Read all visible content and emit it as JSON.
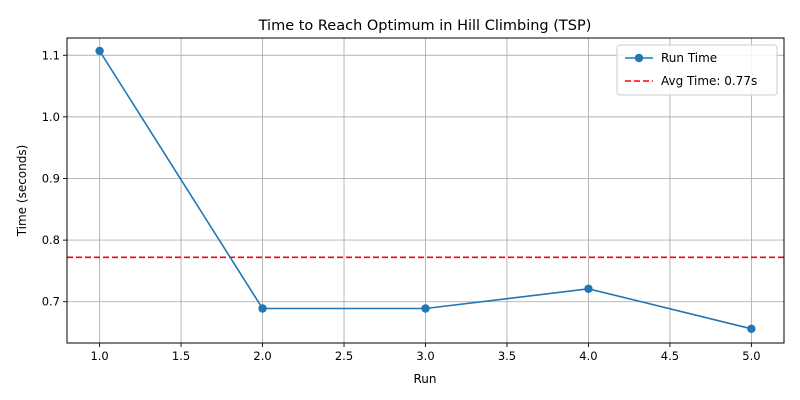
{
  "chart_data": {
    "type": "line",
    "title": "Time to Reach Optimum in Hill Climbing (TSP)",
    "xlabel": "Run",
    "ylabel": "Time (seconds)",
    "xlim": [
      0.8,
      5.2
    ],
    "ylim": [
      0.633,
      1.128
    ],
    "x_ticks": [
      1.0,
      1.5,
      2.0,
      2.5,
      3.0,
      3.5,
      4.0,
      4.5,
      5.0
    ],
    "x_tick_labels": [
      "1.0",
      "1.5",
      "2.0",
      "2.5",
      "3.0",
      "3.5",
      "4.0",
      "4.5",
      "5.0"
    ],
    "y_ticks": [
      0.7,
      0.8,
      0.9,
      1.0,
      1.1
    ],
    "y_tick_labels": [
      "0.7",
      "0.8",
      "0.9",
      "1.0",
      "1.1"
    ],
    "grid": true,
    "legend_position": "top-right",
    "series": [
      {
        "name": "Run Time",
        "color": "#1f77b4",
        "marker": "circle",
        "x": [
          1,
          2,
          3,
          4,
          5
        ],
        "y": [
          1.107,
          0.689,
          0.689,
          0.721,
          0.656
        ]
      }
    ],
    "reference_lines": [
      {
        "name": "Avg Time: 0.77s",
        "color": "#ff0000",
        "style": "dashed",
        "y": 0.772
      }
    ]
  }
}
